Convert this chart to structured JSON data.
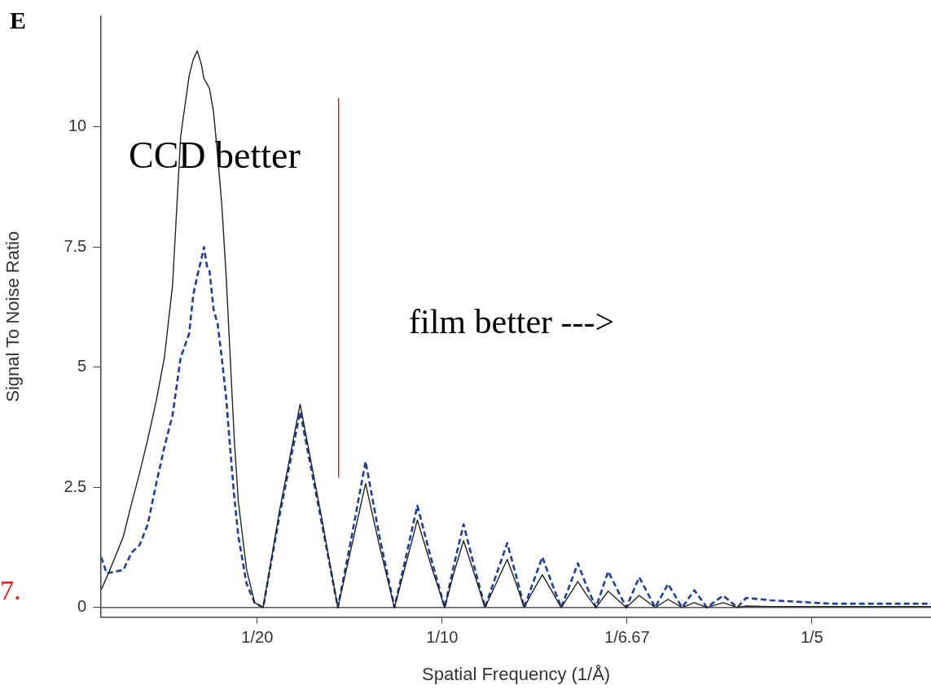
{
  "chart_data": {
    "type": "line",
    "xlabel": "Spatial Frequency (1/Å)",
    "ylabel": "Signal To Noise Ratio",
    "xlim": [
      0.0078,
      0.2322
    ],
    "xticks": [
      {
        "value": 0.05,
        "label": "1/20"
      },
      {
        "value": 0.1,
        "label": "1/10"
      },
      {
        "value": 0.15,
        "label": "1/6.67"
      },
      {
        "value": 0.2,
        "label": "1/5"
      }
    ],
    "ylim": [
      -0.2,
      12.3
    ],
    "yticks": [
      0,
      2.5,
      5,
      7.5,
      10
    ],
    "grid": false,
    "legend": false,
    "marker": "none",
    "x": [
      0.0078,
      0.0093,
      0.0116,
      0.0138,
      0.016,
      0.0182,
      0.0204,
      0.0227,
      0.0249,
      0.0271,
      0.0293,
      0.0316,
      0.0327,
      0.0338,
      0.0349,
      0.0356,
      0.0364,
      0.0371,
      0.0382,
      0.0393,
      0.0404,
      0.0416,
      0.0427,
      0.0438,
      0.0449,
      0.0471,
      0.0493,
      0.0516,
      0.056,
      0.0616,
      0.0671,
      0.0718,
      0.0756,
      0.0793,
      0.083,
      0.0871,
      0.0902,
      0.0933,
      0.0969,
      0.1007,
      0.1031,
      0.1058,
      0.1087,
      0.1116,
      0.1146,
      0.1176,
      0.12,
      0.1222,
      0.1246,
      0.1271,
      0.1296,
      0.1322,
      0.1345,
      0.1367,
      0.139,
      0.1416,
      0.1449,
      0.1498,
      0.1533,
      0.1576,
      0.1611,
      0.1649,
      0.1682,
      0.1716,
      0.176,
      0.1798,
      0.1822,
      0.1889,
      0.196,
      0.2049,
      0.2138,
      0.2227,
      0.2322
    ],
    "series": [
      {
        "color": "#222222",
        "line_style": "solid",
        "values": [
          0.37,
          0.63,
          1.05,
          1.48,
          2.16,
          2.8,
          3.5,
          4.3,
          5.2,
          6.7,
          9.8,
          11.07,
          11.4,
          11.58,
          11.3,
          11.0,
          10.9,
          10.8,
          10.3,
          9.4,
          8.4,
          6.9,
          5.2,
          3.5,
          2.2,
          0.8,
          0.1,
          0,
          2.0,
          4.23,
          2.0,
          0,
          1.3,
          2.58,
          1.3,
          0,
          0.9,
          1.82,
          0.9,
          0,
          0.7,
          1.39,
          0.7,
          0,
          0.5,
          1.0,
          0.5,
          0,
          0.35,
          0.68,
          0.35,
          0,
          0.27,
          0.54,
          0.27,
          0,
          0.34,
          0,
          0.25,
          0,
          0.17,
          0,
          0.1,
          0,
          0.1,
          0,
          0.03,
          0.02,
          0.02,
          0.02,
          0.02,
          0.02,
          0.02
        ]
      },
      {
        "color": "#1c3f9e",
        "line_style": "dashed",
        "values": [
          1.05,
          0.71,
          0.75,
          0.78,
          1.14,
          1.3,
          1.73,
          2.58,
          3.34,
          4.0,
          5.2,
          5.7,
          6.5,
          6.9,
          7.25,
          7.5,
          7.1,
          7.0,
          6.2,
          5.9,
          5.2,
          4.36,
          3.3,
          2.3,
          1.48,
          0.5,
          0.1,
          0,
          1.9,
          4.07,
          1.9,
          0,
          1.5,
          3.04,
          1.5,
          0,
          1.05,
          2.12,
          1.05,
          0,
          0.85,
          1.73,
          0.85,
          0,
          0.67,
          1.34,
          0.67,
          0,
          0.52,
          1.05,
          0.52,
          0,
          0.46,
          0.92,
          0.46,
          0,
          0.75,
          0,
          0.63,
          0,
          0.49,
          0,
          0.36,
          0,
          0.25,
          0,
          0.2,
          0.15,
          0.12,
          0.08,
          0.08,
          0.08,
          0.08
        ]
      },
      {
        "color": "#e8141b",
        "line_style": "solid",
        "x": [
          0.072,
          0.072
        ],
        "values": [
          2.7,
          10.6
        ]
      }
    ],
    "ref_lines": [
      {
        "axis": "y",
        "value": 0,
        "color": "#555555"
      }
    ],
    "annotations": [
      "CCD better",
      "film better --->",
      "E",
      "7."
    ]
  }
}
